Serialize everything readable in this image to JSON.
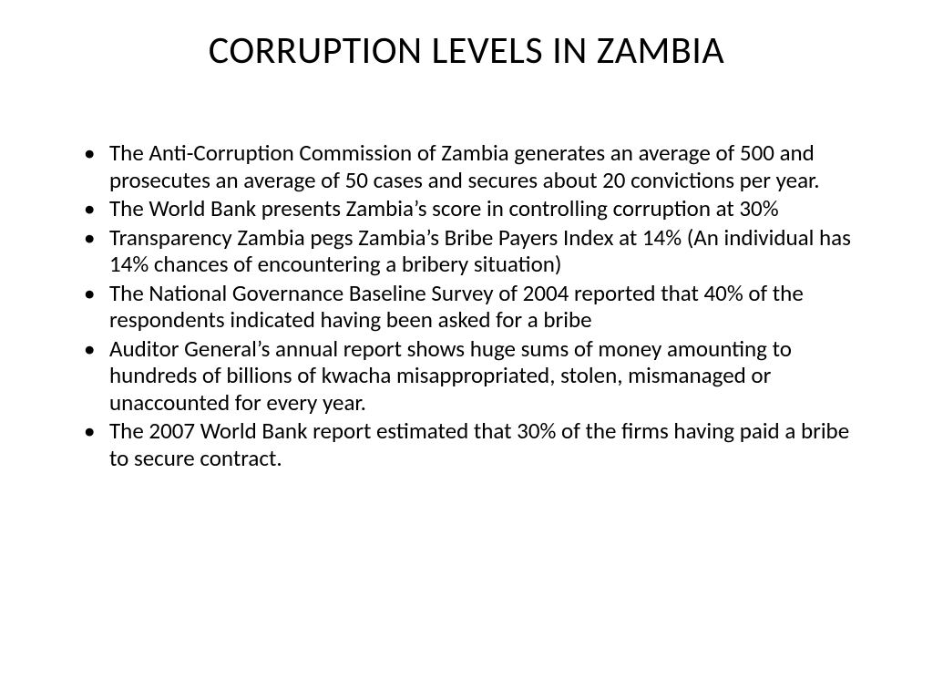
{
  "slide": {
    "title": "CORRUPTION LEVELS IN ZAMBIA",
    "bullets": [
      "The Anti-Corruption Commission of Zambia generates an average of 500 and prosecutes an average of 50 cases and secures about 20 convictions  per year.",
      "The World Bank presents Zambia’s score in controlling corruption at 30%",
      "Transparency Zambia pegs Zambia’s Bribe Payers Index at 14% (An individual has 14% chances of encountering a bribery situation)",
      "The National Governance Baseline Survey  of 2004 reported that 40% of the respondents indicated having been asked for a bribe",
      "Auditor General’s annual report shows huge sums of money amounting to hundreds of billions of kwacha misappropriated, stolen, mismanaged or unaccounted for every year.",
      "The 2007 World Bank report estimated that 30% of the firms having paid a bribe to secure contract."
    ],
    "background_color": "#ffffff",
    "text_color": "#000000",
    "title_fontsize": 42,
    "body_fontsize": 25
  }
}
